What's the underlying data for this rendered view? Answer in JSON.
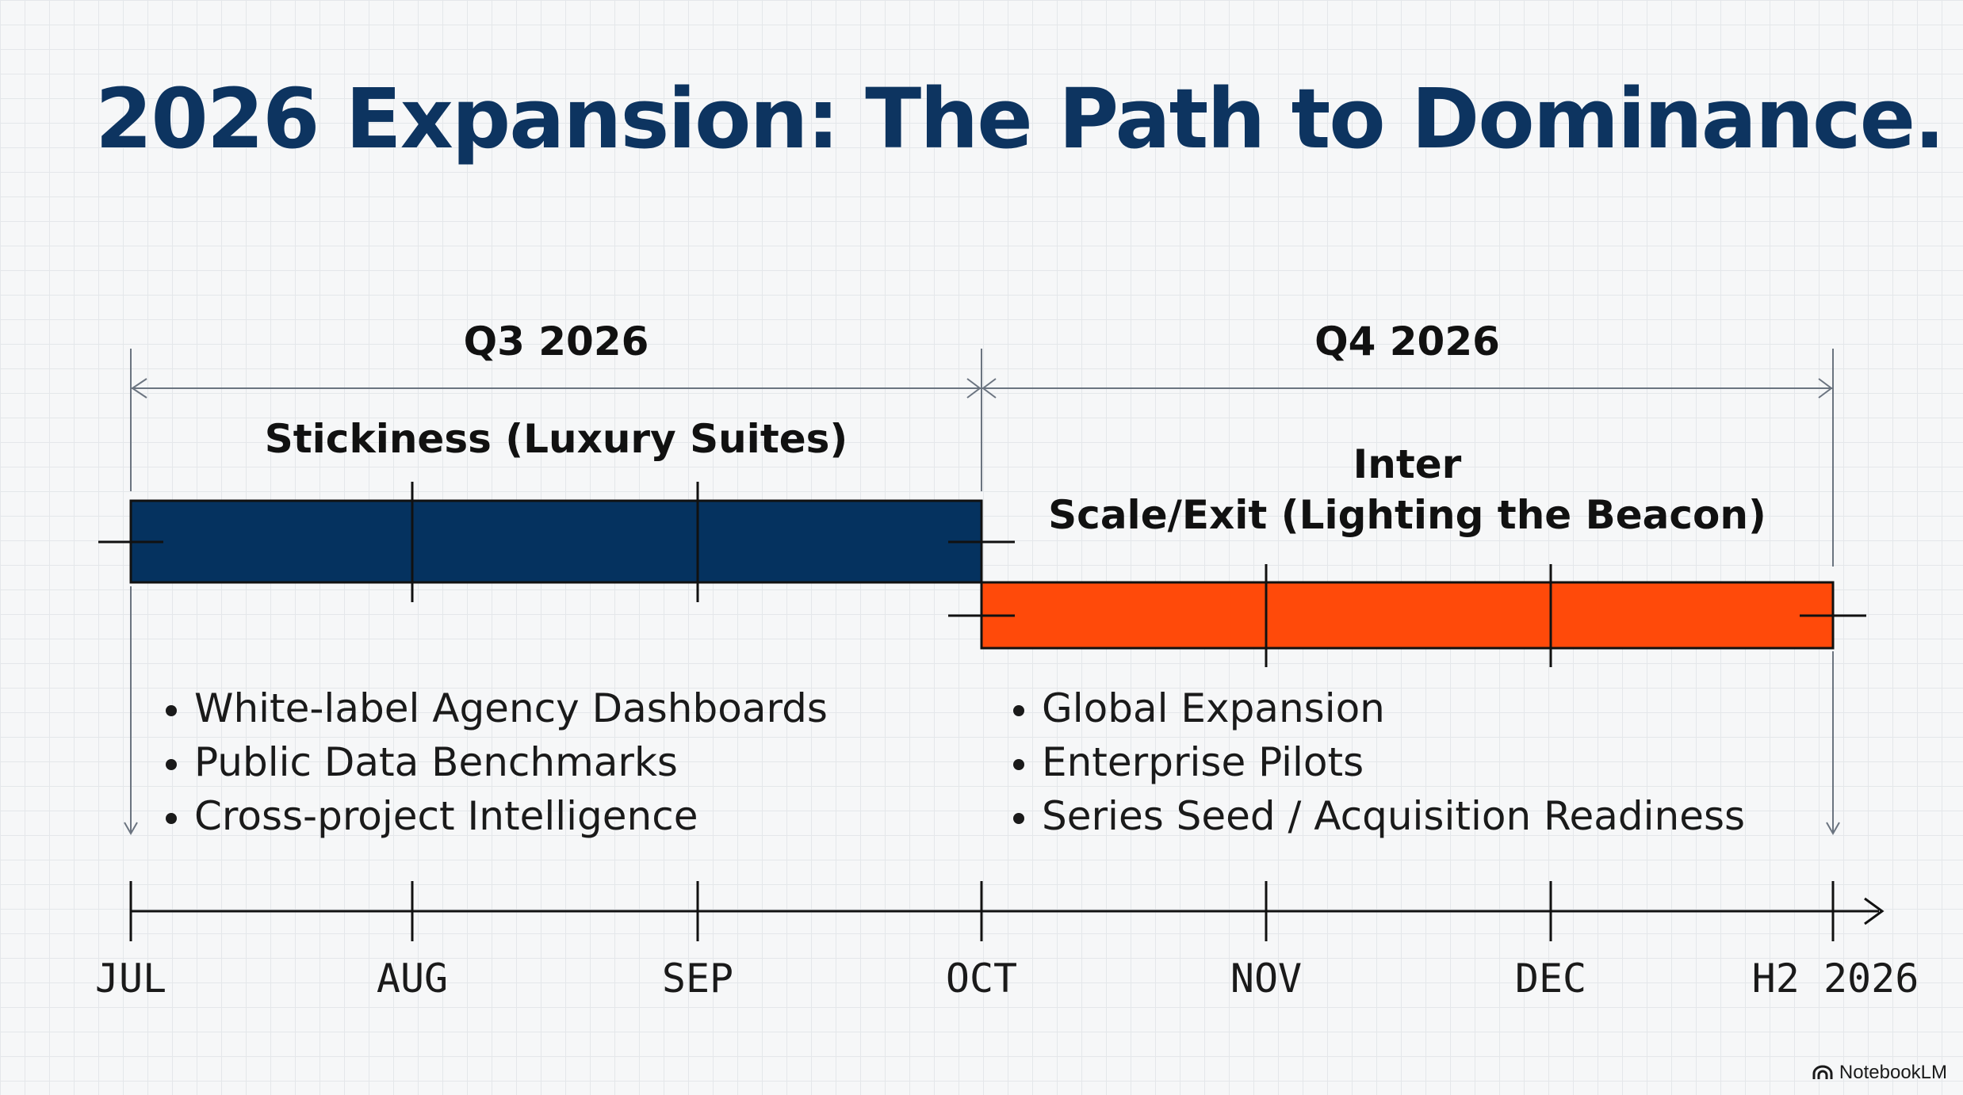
{
  "slide": {
    "title": "2026 Expansion: The Path to Dominance."
  },
  "colors": {
    "title": "#0d3460",
    "q3_bar": "#05325f",
    "q4_bar": "#ff4a0a",
    "lines": "#6b7480"
  },
  "quarters": [
    {
      "label": "Q3 2026"
    },
    {
      "label": "Q4 2026"
    }
  ],
  "phases": [
    {
      "title_lines": [
        "Stickiness (Luxury Suites)"
      ],
      "start": "JUL",
      "end": "OCT",
      "bullets": [
        "White-label Agency Dashboards",
        "Public Data Benchmarks",
        "Cross-project Intelligence"
      ]
    },
    {
      "title_lines": [
        "Inter",
        "Scale/Exit (Lighting the Beacon)"
      ],
      "start": "OCT",
      "end": "H2 2026",
      "bullets": [
        "Global Expansion",
        "Enterprise Pilots",
        "Series Seed / Acquisition Readiness"
      ]
    }
  ],
  "axis": {
    "months": [
      "JUL",
      "AUG",
      "SEP",
      "OCT",
      "NOV",
      "DEC",
      "H2 2026"
    ]
  },
  "branding": {
    "name": "NotebookLM",
    "icon": "notebooklm-logo-icon"
  }
}
